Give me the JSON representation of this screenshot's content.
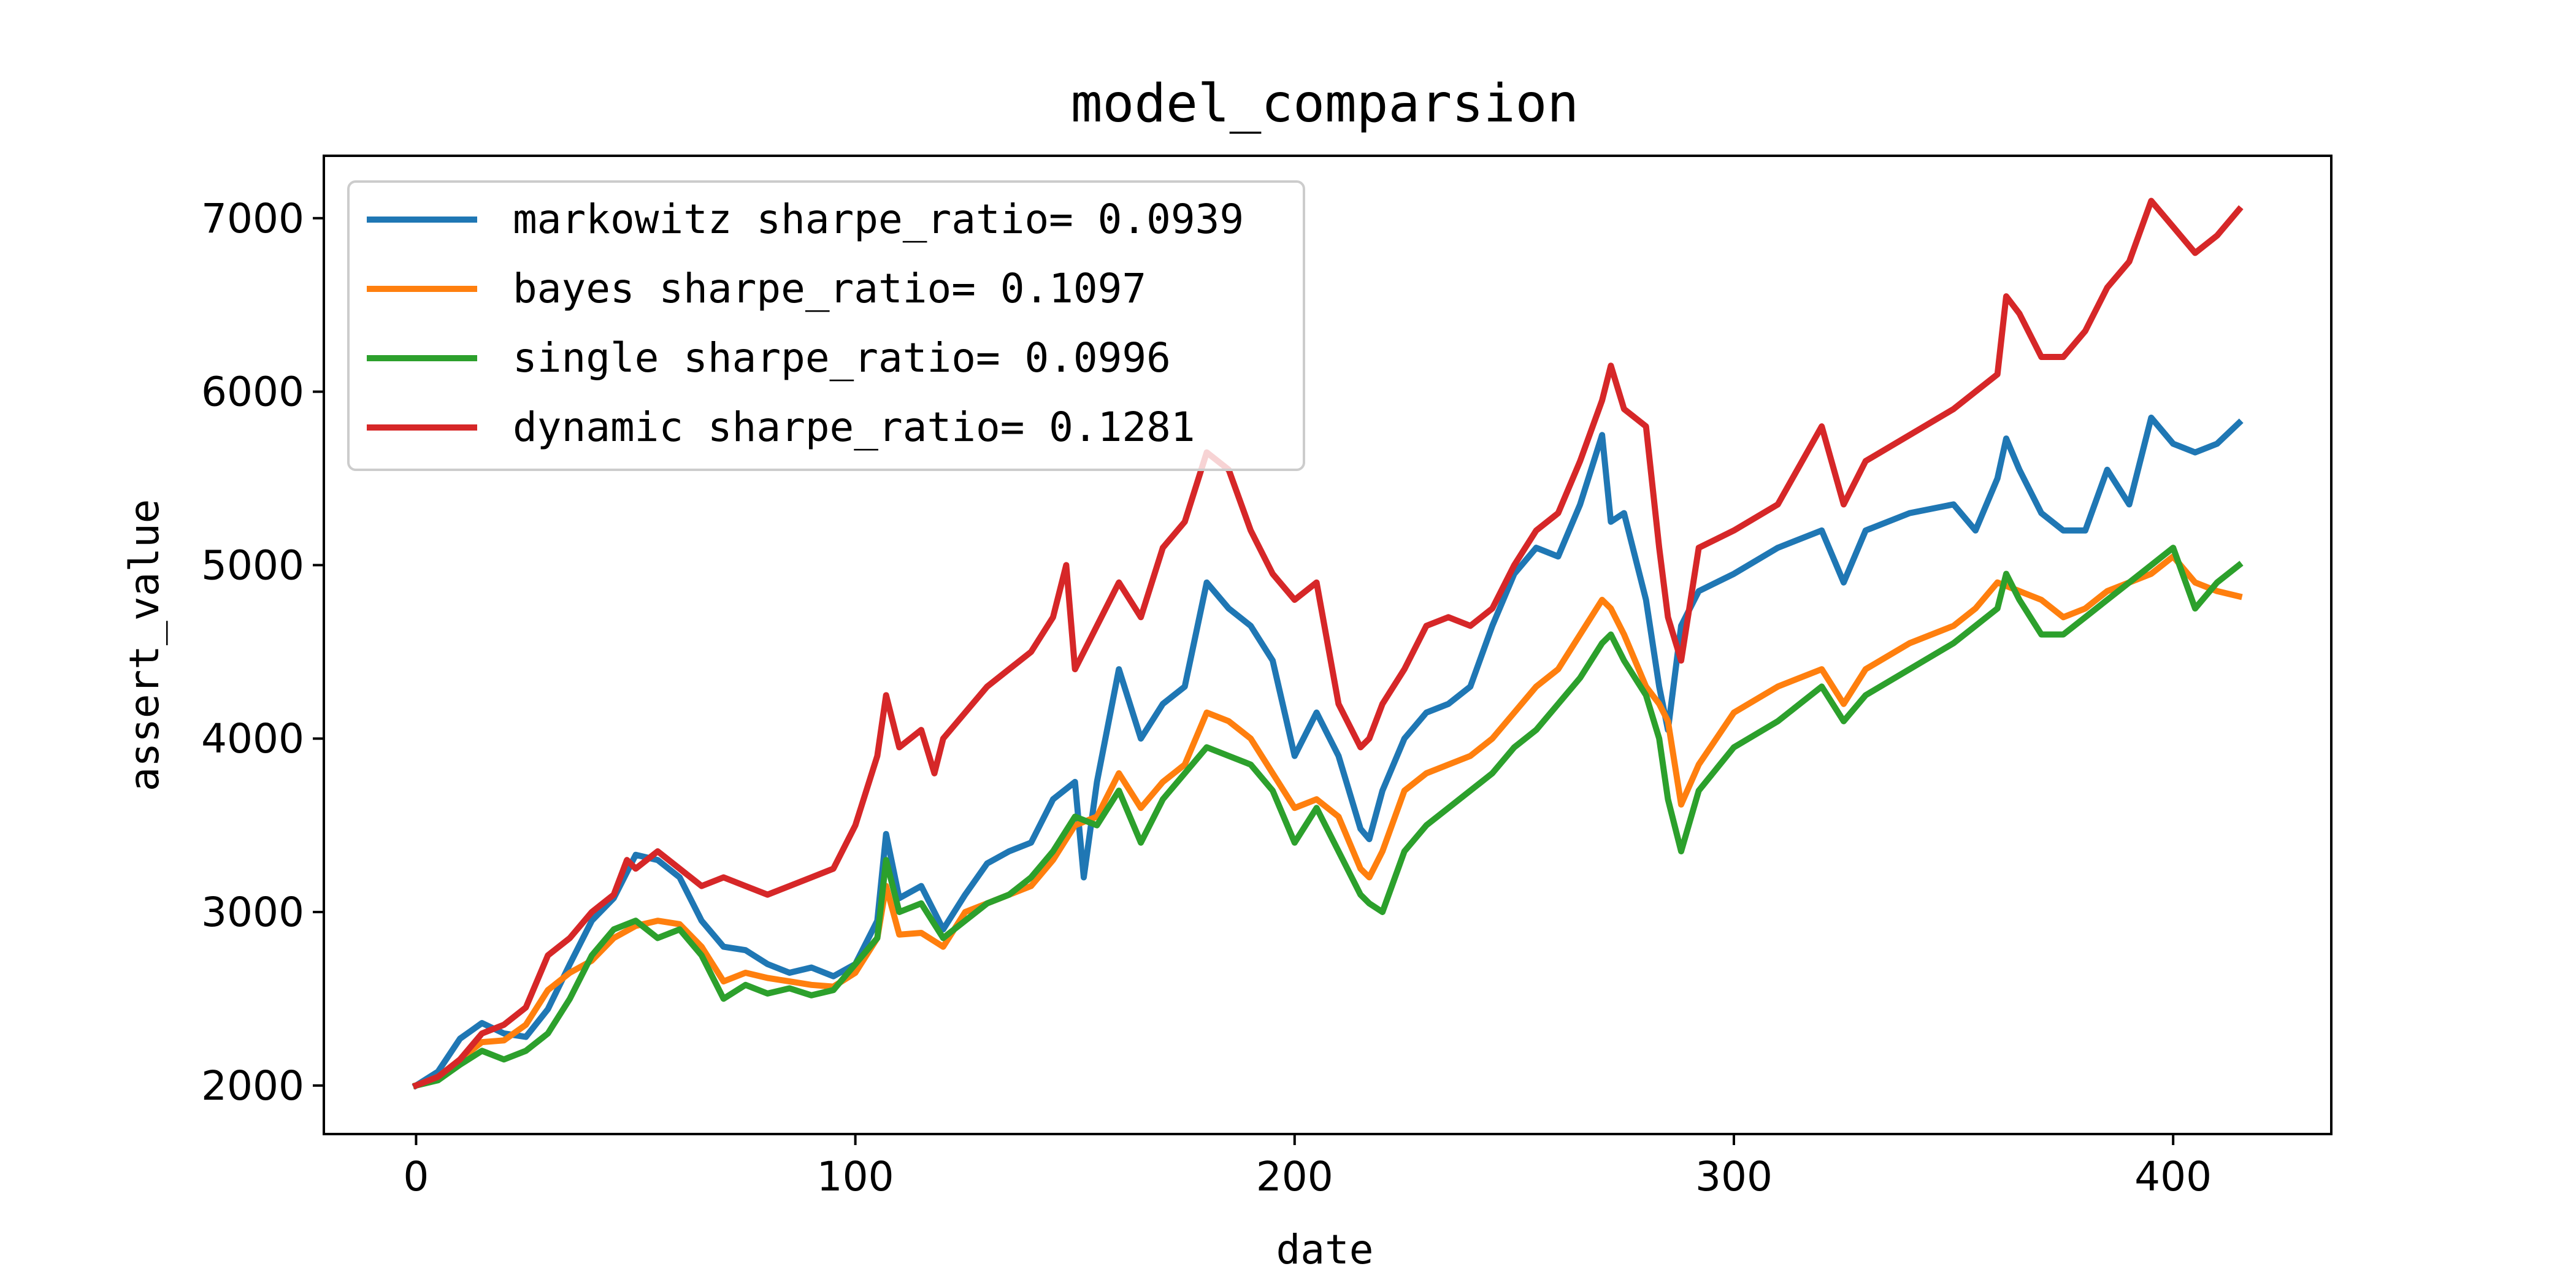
{
  "chart_data": {
    "type": "line",
    "title": "model_comparsion",
    "xlabel": "date",
    "ylabel": "assert_value",
    "xlim": [
      -21,
      436
    ],
    "ylim": [
      1720,
      7360
    ],
    "x_ticks": [
      0,
      100,
      200,
      300,
      400
    ],
    "y_ticks": [
      2000,
      3000,
      4000,
      5000,
      6000,
      7000
    ],
    "grid": false,
    "legend_position": "upper-left",
    "series": [
      {
        "name": "markowitz sharpe_ratio= 0.0939",
        "color": "#1f77b4",
        "x": [
          0,
          5,
          10,
          15,
          20,
          25,
          30,
          35,
          40,
          45,
          50,
          55,
          60,
          65,
          70,
          75,
          80,
          85,
          90,
          95,
          100,
          105,
          107,
          110,
          115,
          120,
          125,
          130,
          135,
          140,
          145,
          150,
          152,
          155,
          160,
          165,
          170,
          175,
          180,
          185,
          190,
          195,
          200,
          205,
          210,
          215,
          217,
          220,
          225,
          230,
          235,
          240,
          245,
          250,
          255,
          260,
          265,
          270,
          272,
          275,
          280,
          283,
          285,
          288,
          292,
          300,
          310,
          320,
          325,
          330,
          340,
          350,
          355,
          360,
          362,
          365,
          370,
          375,
          380,
          385,
          390,
          395,
          400,
          405,
          410,
          415
        ],
        "values": [
          2000,
          2080,
          2270,
          2360,
          2300,
          2280,
          2440,
          2700,
          2950,
          3080,
          3330,
          3300,
          3200,
          2950,
          2800,
          2780,
          2700,
          2650,
          2680,
          2630,
          2700,
          2950,
          3450,
          3080,
          3150,
          2900,
          3100,
          3280,
          3350,
          3400,
          3650,
          3750,
          3200,
          3750,
          4400,
          4000,
          4200,
          4300,
          4900,
          4750,
          4650,
          4450,
          3900,
          4150,
          3900,
          3480,
          3420,
          3700,
          4000,
          4150,
          4200,
          4300,
          4650,
          4950,
          5100,
          5050,
          5350,
          5750,
          5250,
          5300,
          4800,
          4300,
          4050,
          4650,
          4850,
          4950,
          5100,
          5200,
          4900,
          5200,
          5300,
          5350,
          5200,
          5500,
          5730,
          5550,
          5300,
          5200,
          5200,
          5550,
          5350,
          5850,
          5700,
          5650,
          5700,
          5820
        ]
      },
      {
        "name": "bayes sharpe_ratio= 0.1097",
        "color": "#ff7f0e",
        "x": [
          0,
          5,
          10,
          15,
          20,
          25,
          30,
          35,
          40,
          45,
          50,
          55,
          60,
          65,
          70,
          75,
          80,
          85,
          90,
          95,
          100,
          105,
          107,
          110,
          115,
          120,
          125,
          130,
          135,
          140,
          145,
          150,
          155,
          160,
          165,
          170,
          175,
          180,
          185,
          190,
          195,
          200,
          205,
          210,
          215,
          217,
          220,
          225,
          230,
          235,
          240,
          245,
          250,
          255,
          260,
          265,
          270,
          272,
          275,
          280,
          283,
          285,
          288,
          292,
          300,
          310,
          320,
          325,
          330,
          340,
          350,
          355,
          360,
          362,
          365,
          370,
          375,
          380,
          385,
          390,
          395,
          400,
          405,
          410,
          415
        ],
        "values": [
          2000,
          2050,
          2150,
          2250,
          2260,
          2350,
          2550,
          2650,
          2720,
          2850,
          2920,
          2950,
          2930,
          2800,
          2600,
          2650,
          2620,
          2600,
          2580,
          2570,
          2650,
          2850,
          3150,
          2870,
          2880,
          2800,
          3000,
          3050,
          3100,
          3150,
          3300,
          3500,
          3550,
          3800,
          3600,
          3750,
          3850,
          4150,
          4100,
          4000,
          3800,
          3600,
          3650,
          3550,
          3250,
          3200,
          3350,
          3700,
          3800,
          3850,
          3900,
          4000,
          4150,
          4300,
          4400,
          4600,
          4800,
          4750,
          4600,
          4300,
          4200,
          4100,
          3620,
          3850,
          4150,
          4300,
          4400,
          4200,
          4400,
          4550,
          4650,
          4750,
          4900,
          4880,
          4850,
          4800,
          4700,
          4750,
          4850,
          4900,
          4950,
          5050,
          4900,
          4850,
          4820
        ]
      },
      {
        "name": "single sharpe_ratio= 0.0996",
        "color": "#2ca02c",
        "x": [
          0,
          5,
          10,
          15,
          20,
          25,
          30,
          35,
          40,
          45,
          50,
          55,
          60,
          65,
          70,
          75,
          80,
          85,
          90,
          95,
          100,
          105,
          107,
          110,
          115,
          120,
          125,
          130,
          135,
          140,
          145,
          150,
          155,
          160,
          165,
          170,
          175,
          180,
          185,
          190,
          195,
          200,
          205,
          210,
          215,
          217,
          220,
          225,
          230,
          235,
          240,
          245,
          250,
          255,
          260,
          265,
          270,
          272,
          275,
          280,
          283,
          285,
          288,
          292,
          300,
          310,
          320,
          325,
          330,
          340,
          350,
          355,
          360,
          362,
          365,
          370,
          375,
          380,
          385,
          390,
          395,
          400,
          405,
          410,
          415
        ],
        "values": [
          2000,
          2030,
          2120,
          2200,
          2150,
          2200,
          2300,
          2500,
          2750,
          2900,
          2950,
          2850,
          2900,
          2750,
          2500,
          2580,
          2530,
          2560,
          2520,
          2550,
          2700,
          2850,
          3300,
          3000,
          3050,
          2850,
          2950,
          3050,
          3100,
          3200,
          3350,
          3550,
          3500,
          3700,
          3400,
          3650,
          3800,
          3950,
          3900,
          3850,
          3700,
          3400,
          3600,
          3350,
          3100,
          3050,
          3000,
          3350,
          3500,
          3600,
          3700,
          3800,
          3950,
          4050,
          4200,
          4350,
          4550,
          4600,
          4450,
          4250,
          4000,
          3650,
          3350,
          3700,
          3950,
          4100,
          4300,
          4100,
          4250,
          4400,
          4550,
          4650,
          4750,
          4950,
          4800,
          4600,
          4600,
          4700,
          4800,
          4900,
          5000,
          5100,
          4750,
          4900,
          5000
        ]
      },
      {
        "name": "dynamic sharpe_ratio= 0.1281",
        "color": "#d62728",
        "x": [
          0,
          5,
          10,
          15,
          20,
          25,
          30,
          35,
          40,
          45,
          48,
          50,
          55,
          60,
          65,
          70,
          75,
          80,
          85,
          90,
          95,
          100,
          105,
          107,
          110,
          115,
          118,
          120,
          125,
          130,
          135,
          140,
          145,
          148,
          150,
          155,
          160,
          165,
          170,
          175,
          180,
          185,
          190,
          195,
          200,
          205,
          210,
          215,
          217,
          220,
          225,
          230,
          235,
          240,
          245,
          250,
          255,
          260,
          265,
          270,
          272,
          275,
          280,
          283,
          285,
          288,
          292,
          300,
          310,
          320,
          325,
          330,
          340,
          350,
          355,
          360,
          362,
          365,
          370,
          375,
          380,
          385,
          390,
          395,
          400,
          405,
          410,
          415
        ],
        "values": [
          2000,
          2050,
          2150,
          2300,
          2350,
          2450,
          2750,
          2850,
          3000,
          3100,
          3300,
          3250,
          3350,
          3250,
          3150,
          3200,
          3150,
          3100,
          3150,
          3200,
          3250,
          3500,
          3900,
          4250,
          3950,
          4050,
          3800,
          4000,
          4150,
          4300,
          4400,
          4500,
          4700,
          5000,
          4400,
          4650,
          4900,
          4700,
          5100,
          5250,
          5650,
          5550,
          5200,
          4950,
          4800,
          4900,
          4200,
          3950,
          4000,
          4200,
          4400,
          4650,
          4700,
          4650,
          4750,
          5000,
          5200,
          5300,
          5600,
          5950,
          6150,
          5900,
          5800,
          5100,
          4700,
          4450,
          5100,
          5200,
          5350,
          5800,
          5350,
          5600,
          5750,
          5900,
          6000,
          6100,
          6550,
          6450,
          6200,
          6200,
          6350,
          6600,
          6750,
          7100,
          6950,
          6800,
          6900,
          7050
        ]
      }
    ]
  },
  "colors": {
    "markowitz": "#1f77b4",
    "bayes": "#ff7f0e",
    "single": "#2ca02c",
    "dynamic": "#d62728",
    "axes": "#000000",
    "legend_border": "#cccccc"
  }
}
